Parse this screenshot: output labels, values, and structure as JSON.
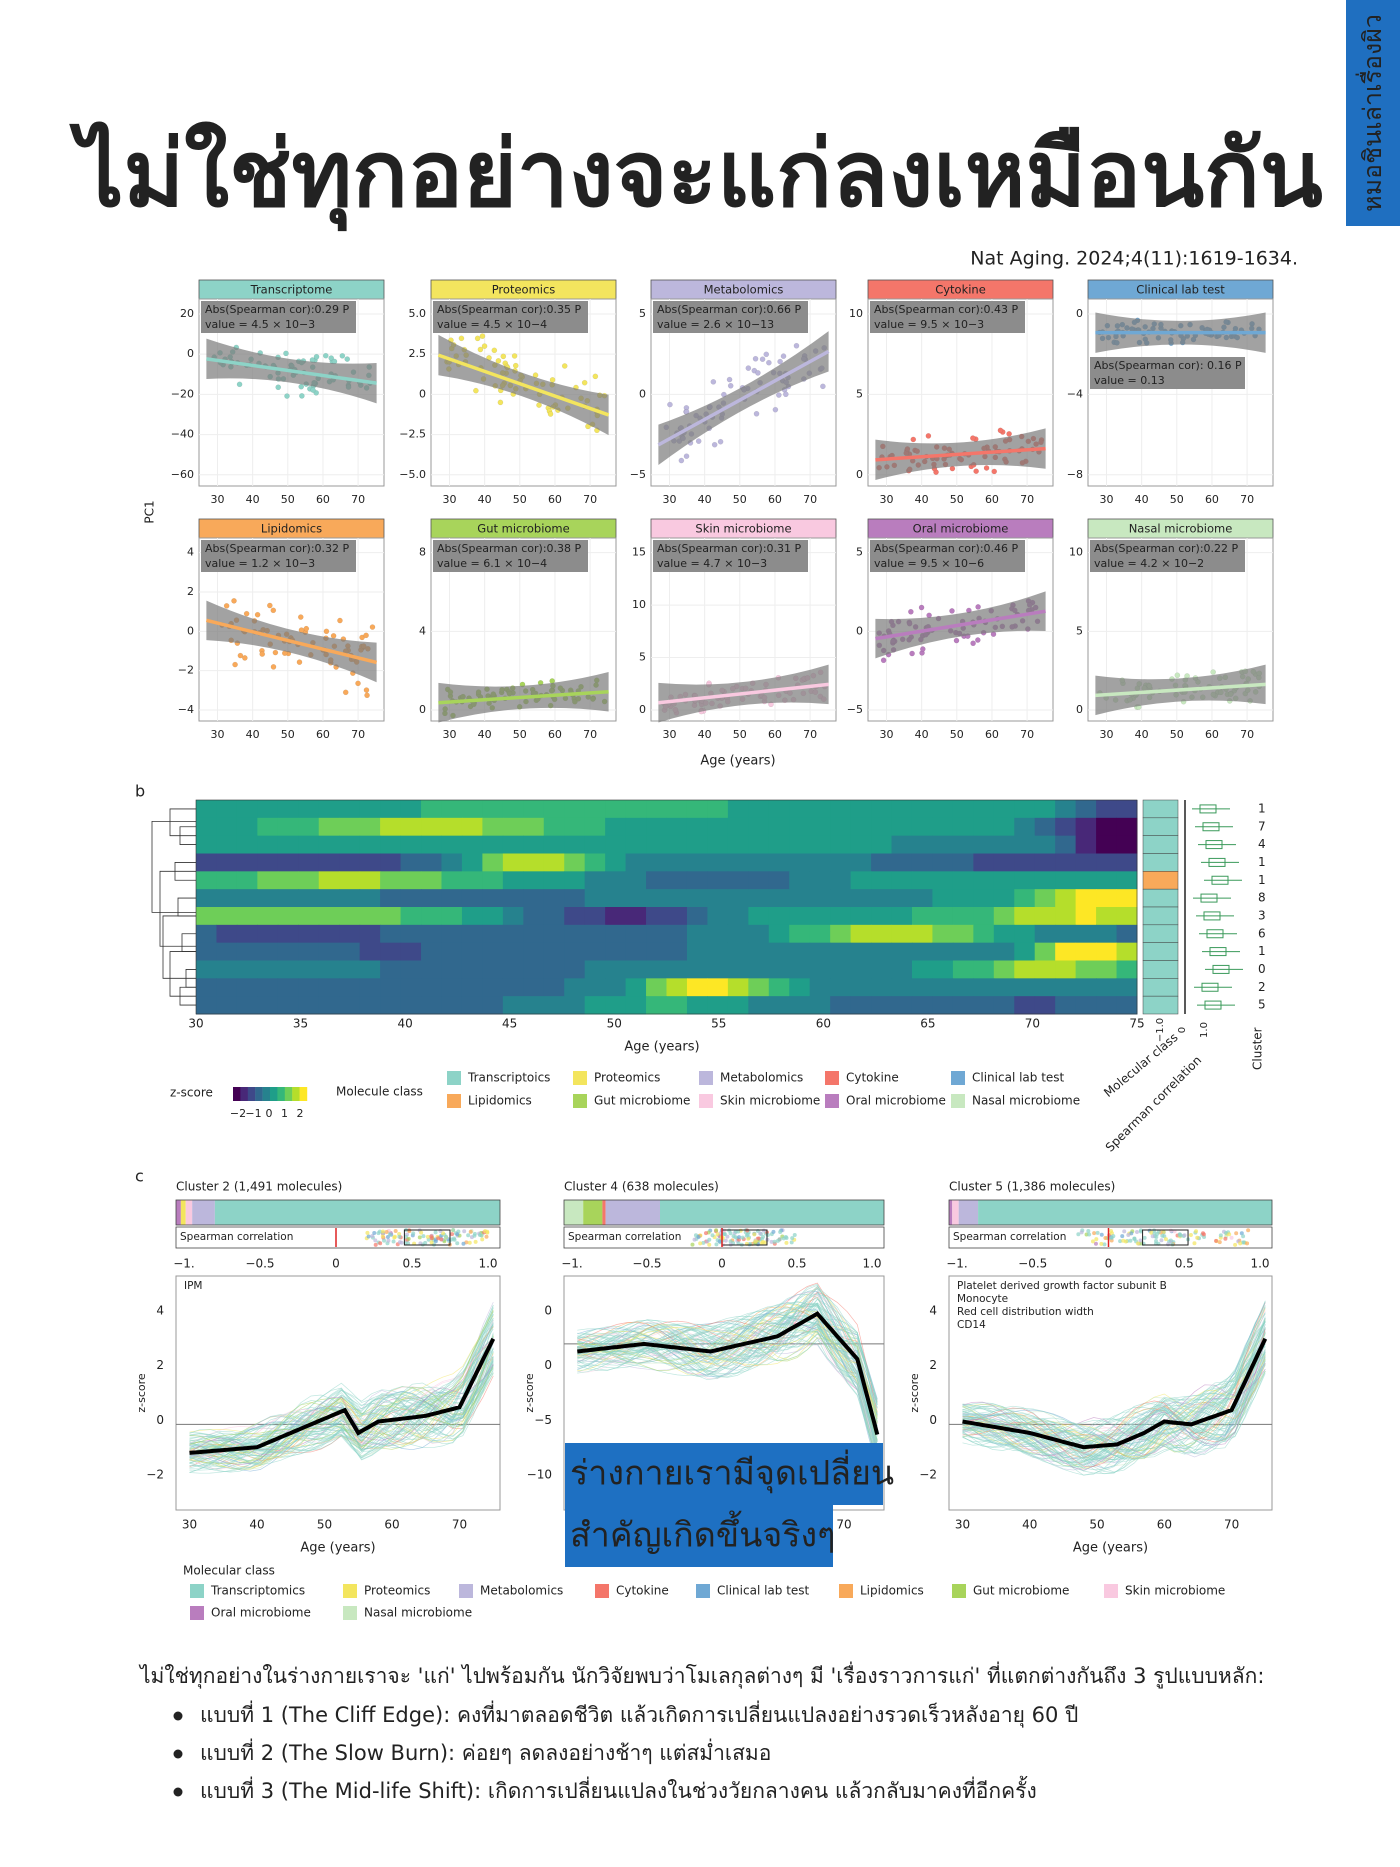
{
  "header": {
    "side_tab": "หมอชินเล่าเรื่องผิว",
    "title": "ไม่ใช่ทุกอย่างจะแก่ลงเหมือนกัน",
    "citation": "Nat Aging. 2024;4(11):1619-1634."
  },
  "panel_a": {
    "y_label": "PC1",
    "x_label": "Age (years)",
    "x_ticks": [
      "30",
      "40",
      "50",
      "60",
      "70"
    ],
    "plots": [
      {
        "title": "Transcriptome",
        "color": "#8dd3c7",
        "stat": [
          "Abs(Spearman cor):0.29 P",
          "value = 4.5 × 10−3"
        ],
        "y_ticks": [
          "20",
          "0",
          "−20",
          "−40",
          "−60"
        ]
      },
      {
        "title": "Proteomics",
        "color": "#f3e55e",
        "stat": [
          "Abs(Spearman cor):0.35 P",
          "value = 4.5 × 10−4"
        ],
        "y_ticks": [
          "5.0",
          "2.5",
          "0",
          "−2.5",
          "−5.0"
        ]
      },
      {
        "title": "Metabolomics",
        "color": "#bcb7dc",
        "stat": [
          "Abs(Spearman cor):0.66 P",
          "value = 2.6 × 10−13"
        ],
        "y_ticks": [
          "5",
          "0",
          "−5"
        ]
      },
      {
        "title": "Cytokine",
        "color": "#f4766a",
        "stat": [
          "Abs(Spearman cor):0.43 P",
          "value = 9.5 × 10−3"
        ],
        "y_ticks": [
          "10",
          "5",
          "0"
        ]
      },
      {
        "title": "Clinical lab test",
        "color": "#6fa8d4",
        "stat": [
          "Abs(Spearman cor): 0.16 P",
          "value = 0.13"
        ],
        "y_ticks": [
          "0",
          "−4",
          "−8"
        ]
      },
      {
        "title": "Lipidomics",
        "color": "#f8a95a",
        "stat": [
          "Abs(Spearman cor):0.32 P",
          "value = 1.2 × 10−3"
        ],
        "y_ticks": [
          "4",
          "2",
          "0",
          "−2",
          "−4"
        ]
      },
      {
        "title": "Gut microbiome",
        "color": "#a8d45b",
        "stat": [
          "Abs(Spearman cor):0.38 P",
          "value = 6.1 × 10−4"
        ],
        "y_ticks": [
          "8",
          "4",
          "0"
        ]
      },
      {
        "title": "Skin microbiome",
        "color": "#f9c9e0",
        "stat": [
          "Abs(Spearman cor):0.31 P",
          "value = 4.7 × 10−3"
        ],
        "y_ticks": [
          "15",
          "10",
          "5",
          "0"
        ]
      },
      {
        "title": "Oral microbiome",
        "color": "#b97dbe",
        "stat": [
          "Abs(Spearman cor):0.46 P",
          "value = 9.5 × 10−6"
        ],
        "y_ticks": [
          "5",
          "0",
          "−5"
        ]
      },
      {
        "title": "Nasal microbiome",
        "color": "#c8e8c0",
        "stat": [
          "Abs(Spearman cor):0.22 P",
          "value = 4.2 × 10−2"
        ],
        "y_ticks": [
          "10",
          "5",
          "0"
        ]
      }
    ]
  },
  "panel_b": {
    "label": "b",
    "x_label": "Age (years)",
    "x_ticks": [
      "30",
      "35",
      "40",
      "45",
      "50",
      "55",
      "60",
      "65",
      "70",
      "75"
    ],
    "side_labels": [
      "Molecular class",
      "Spearman correlation",
      "Cluster"
    ],
    "spearman_ticks": [
      "−1.0",
      "0",
      "1.0"
    ],
    "clusters": [
      "1",
      "7",
      "4",
      "1",
      "1",
      "8",
      "3",
      "6",
      "1",
      "0",
      "2",
      "5"
    ],
    "z_title": "z-score",
    "z_ticks": [
      "−2",
      "−1",
      "0",
      "1",
      "2"
    ],
    "class_title": "Molecule class",
    "classes": [
      {
        "name": "Transcriptoics",
        "color": "#8dd3c7"
      },
      {
        "name": "Proteomics",
        "color": "#f3e55e"
      },
      {
        "name": "Metabolomics",
        "color": "#bcb7dc"
      },
      {
        "name": "Cytokine",
        "color": "#f4766a"
      },
      {
        "name": "Clinical lab test",
        "color": "#6fa8d4"
      },
      {
        "name": "Lipidomics",
        "color": "#f8a95a"
      },
      {
        "name": "Gut microbiome",
        "color": "#a8d45b"
      },
      {
        "name": "Skin microbiome",
        "color": "#f9c9e0"
      },
      {
        "name": "Oral microbiome",
        "color": "#b97dbe"
      },
      {
        "name": "Nasal microbiome",
        "color": "#c8e8c0"
      }
    ]
  },
  "panel_c": {
    "label": "c",
    "x_label": "Age (years)",
    "y_label": "z-score",
    "strip_label": "Spearman correlation",
    "spearman_ticks": [
      "−1.",
      "−0.5",
      "0",
      "0.5",
      "1.0"
    ],
    "x_ticks": [
      "30",
      "40",
      "50",
      "60",
      "70"
    ],
    "plots": [
      {
        "title": "Cluster 2 (1,491 molecules)",
        "y_ticks": [
          "4",
          "2",
          "0",
          "−2"
        ],
        "notes": [
          "IPM"
        ]
      },
      {
        "title": "Cluster 4 (638 molecules)",
        "y_ticks": [
          "0",
          "0",
          "−5",
          "−10"
        ],
        "notes": []
      },
      {
        "title": "Cluster 5 (1,386 molecules)",
        "y_ticks": [
          "4",
          "2",
          "0",
          "−2"
        ],
        "notes": [
          "Platelet derived growth factor subunit B",
          "Monocyte",
          "Red cell distribution width",
          "CD14"
        ]
      }
    ],
    "legend_title": "Molecular class",
    "classes": [
      {
        "name": "Transcriptomics",
        "color": "#8dd3c7"
      },
      {
        "name": "Proteomics",
        "color": "#f3e55e"
      },
      {
        "name": "Metabolomics",
        "color": "#bcb7dc"
      },
      {
        "name": "Cytokine",
        "color": "#f4766a"
      },
      {
        "name": "Clinical lab test",
        "color": "#6fa8d4"
      },
      {
        "name": "Lipidomics",
        "color": "#f8a95a"
      },
      {
        "name": "Gut microbiome",
        "color": "#a8d45b"
      },
      {
        "name": "Skin microbiome",
        "color": "#f9c9e0"
      },
      {
        "name": "Oral microbiome",
        "color": "#b97dbe"
      },
      {
        "name": "Nasal microbiome",
        "color": "#c8e8c0"
      }
    ]
  },
  "overlay": {
    "lines": [
      "ร่างกายเรามีจุดเปลี่ยน",
      "สำคัญเกิดขึ้นจริงๆ"
    ]
  },
  "body": {
    "intro": "ไม่ใช่ทุกอย่างในร่างกายเราจะ 'แก่' ไปพร้อมกัน นักวิจัยพบว่าโมเลกุลต่างๆ มี 'เรื่องราวการแก่' ที่แตกต่างกันถึง 3 รูปแบบหลัก:",
    "bullets": [
      "แบบที่ 1 (The Cliff Edge): คงที่มาตลอดชีวิต แล้วเกิดการเปลี่ยนแปลงอย่างรวดเร็วหลังอายุ 60 ปี",
      "แบบที่ 2 (The Slow Burn): ค่อยๆ ลดลงอย่างช้าๆ แต่สม่ำเสมอ",
      "แบบที่ 3 (The Mid-life Shift): เกิดการเปลี่ยนแปลงในช่วงวัยกลางคน แล้วกลับมาคงที่อีกครั้ง"
    ]
  }
}
